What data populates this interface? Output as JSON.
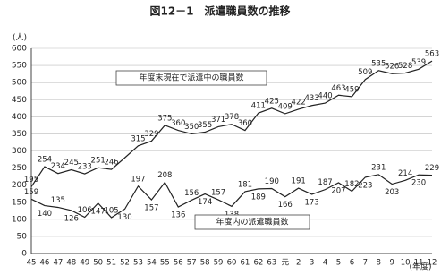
{
  "chart_data": {
    "type": "line",
    "title": "図12－1　派遣職員数の推移",
    "y_label": "(人)",
    "x_label": "(年度)",
    "categories": [
      "45",
      "46",
      "47",
      "48",
      "49",
      "50",
      "51",
      "52",
      "53",
      "54",
      "55",
      "56",
      "57",
      "58",
      "59",
      "60",
      "61",
      "62",
      "63",
      "元",
      "2",
      "3",
      "4",
      "5",
      "6",
      "7",
      "8",
      "9",
      "10",
      "11",
      "12"
    ],
    "series": [
      {
        "name": "年度末現在で派遣中の職員数",
        "color": "#222222",
        "values": [
          195,
          254,
          234,
          245,
          233,
          251,
          246,
          280,
          315,
          329,
          375,
          360,
          350,
          355,
          371,
          378,
          360,
          411,
          425,
          409,
          422,
          433,
          440,
          463,
          459,
          509,
          535,
          526,
          528,
          539,
          563
        ],
        "value_labels": [
          "195",
          "254",
          "234",
          "245",
          "233",
          "251",
          "246",
          null,
          "315",
          "329",
          "375",
          "360",
          "350",
          "355",
          "371",
          "378",
          "360",
          "411",
          "425",
          "409",
          "422",
          "433",
          "440",
          "463",
          "459",
          "509",
          "535",
          "526",
          "528",
          "539",
          "563"
        ]
      },
      {
        "name": "年度内の派遣職員数",
        "color": "#222222",
        "values": [
          159,
          140,
          135,
          126,
          106,
          147,
          105,
          130,
          197,
          157,
          208,
          136,
          156,
          174,
          157,
          138,
          181,
          189,
          190,
          166,
          191,
          173,
          187,
          207,
          182,
          223,
          231,
          203,
          214,
          230,
          229
        ]
      }
    ],
    "ylim": [
      0,
      600
    ],
    "yticks": [
      0,
      50,
      100,
      150,
      200,
      250,
      300,
      350,
      400,
      450,
      500,
      550,
      600
    ],
    "grid": true
  }
}
